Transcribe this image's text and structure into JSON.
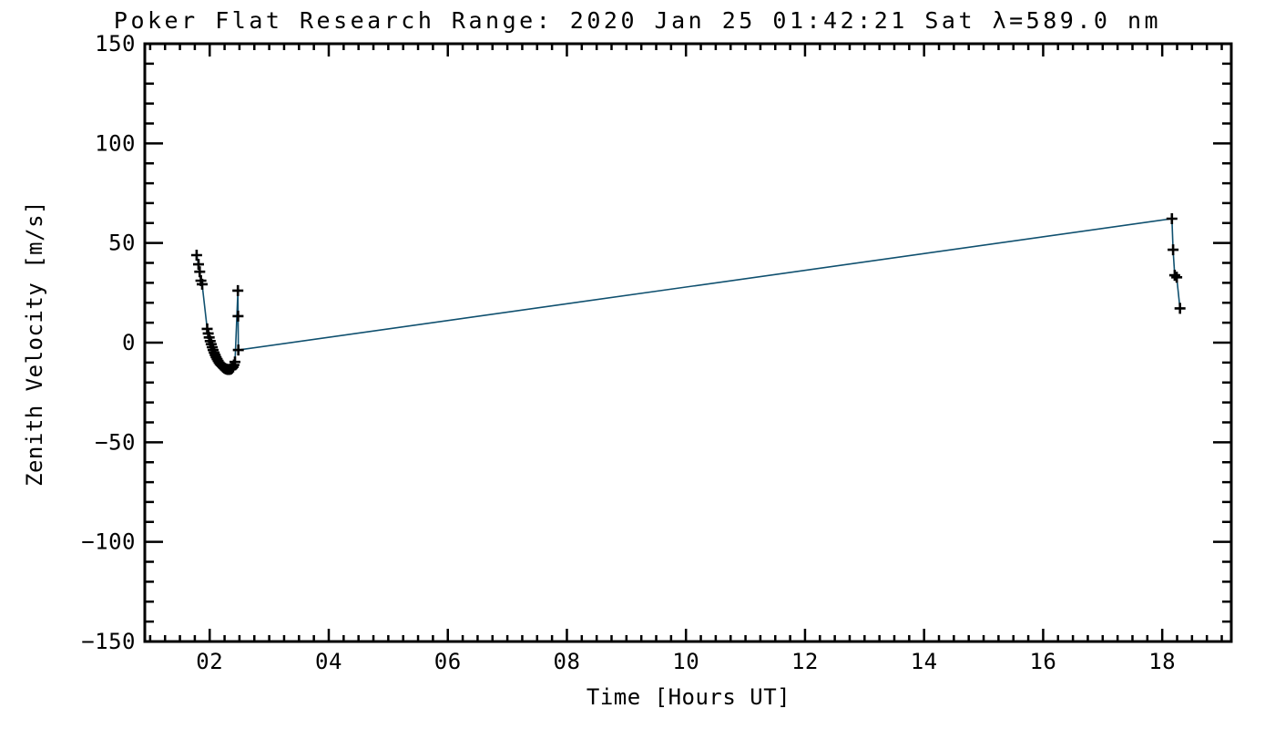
{
  "chart_data": {
    "type": "line",
    "title": "Poker Flat Research Range: 2020 Jan 25 01:42:21 Sat λ=589.0 nm",
    "xlabel": "Time [Hours UT]",
    "ylabel": "Zenith Velocity [m/s]",
    "xlim": [
      0.91,
      19.16
    ],
    "ylim": [
      -150,
      150
    ],
    "x_major_ticks": [
      2,
      4,
      6,
      8,
      10,
      12,
      14,
      16,
      18
    ],
    "x_tick_labels": [
      "02",
      "04",
      "06",
      "08",
      "10",
      "12",
      "14",
      "16",
      "18"
    ],
    "x_minor_interval": 0.25,
    "y_major_ticks": [
      150,
      100,
      50,
      0,
      -50,
      -100,
      -150
    ],
    "y_tick_labels": [
      "150",
      "100",
      "50",
      "0",
      "−50",
      "−100",
      "−150"
    ],
    "y_minor_interval": 10,
    "grid": false,
    "legend": "none",
    "marker_style": "plus",
    "line_color": "#0f506f",
    "marker_color": "#000000",
    "axis_color": "#000000",
    "series": [
      {
        "name": "zenith velocity",
        "points": [
          [
            1.781,
            43.9
          ],
          [
            1.812,
            39.3
          ],
          [
            1.832,
            35.6
          ],
          [
            1.852,
            31.1
          ],
          [
            1.873,
            29.3
          ],
          [
            1.958,
            6.9
          ],
          [
            1.975,
            4.6
          ],
          [
            1.992,
            2.6
          ],
          [
            2.008,
            0.8
          ],
          [
            2.025,
            -0.8
          ],
          [
            2.042,
            -2.3
          ],
          [
            2.058,
            -3.7
          ],
          [
            2.075,
            -5.0
          ],
          [
            2.092,
            -6.2
          ],
          [
            2.108,
            -7.3
          ],
          [
            2.125,
            -8.3
          ],
          [
            2.142,
            -9.2
          ],
          [
            2.158,
            -10.0
          ],
          [
            2.175,
            -10.7
          ],
          [
            2.192,
            -11.3
          ],
          [
            2.208,
            -11.8
          ],
          [
            2.225,
            -12.3
          ],
          [
            2.242,
            -12.7
          ],
          [
            2.258,
            -13.0
          ],
          [
            2.275,
            -13.2
          ],
          [
            2.292,
            -13.4
          ],
          [
            2.308,
            -13.5
          ],
          [
            2.325,
            -13.5
          ],
          [
            2.342,
            -13.4
          ],
          [
            2.358,
            -13.2
          ],
          [
            2.375,
            -12.8
          ],
          [
            2.392,
            -12.2
          ],
          [
            2.408,
            -11.2
          ],
          [
            2.425,
            -9.7
          ],
          [
            2.474,
            26.1
          ],
          [
            2.477,
            13.3
          ],
          [
            2.481,
            -3.7
          ],
          [
            18.163,
            62.2
          ],
          [
            18.182,
            46.6
          ],
          [
            18.21,
            33.8
          ],
          [
            18.243,
            32.8
          ],
          [
            18.298,
            17.2
          ]
        ]
      }
    ]
  }
}
